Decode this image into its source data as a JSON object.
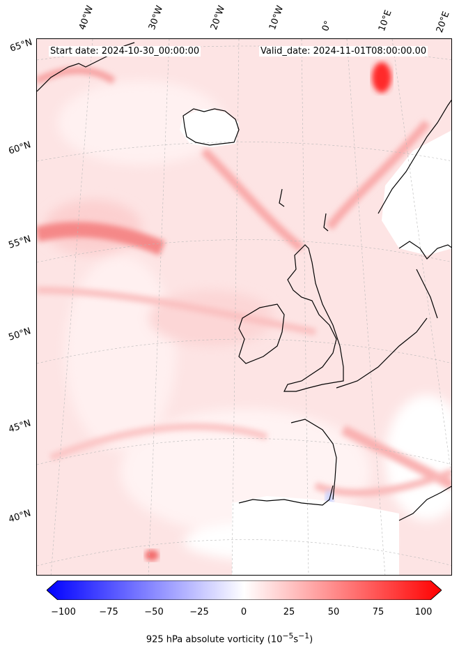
{
  "map": {
    "start_date": "Start date: 2024-10-30_00:00:00",
    "valid_date": "Valid_date: 2024-11-01T08:00:00.00",
    "lon_labels": [
      "40°W",
      "30°W",
      "20°W",
      "10°W",
      "0°",
      "10°E",
      "20°E"
    ],
    "lat_labels": [
      "65°N",
      "60°N",
      "55°N",
      "50°N",
      "45°N",
      "40°N"
    ]
  },
  "colorbar": {
    "ticks": [
      "−100",
      "−75",
      "−50",
      "−25",
      "0",
      "25",
      "50",
      "75",
      "100"
    ],
    "title": "925 hPa absolute vorticity (10",
    "title_unit_exp1": "−5",
    "title_mid": "s",
    "title_unit_exp2": "−1",
    "title_end": ")",
    "min_color": "#0000ff",
    "mid_color": "#ffffff",
    "max_color": "#ff0000"
  }
}
